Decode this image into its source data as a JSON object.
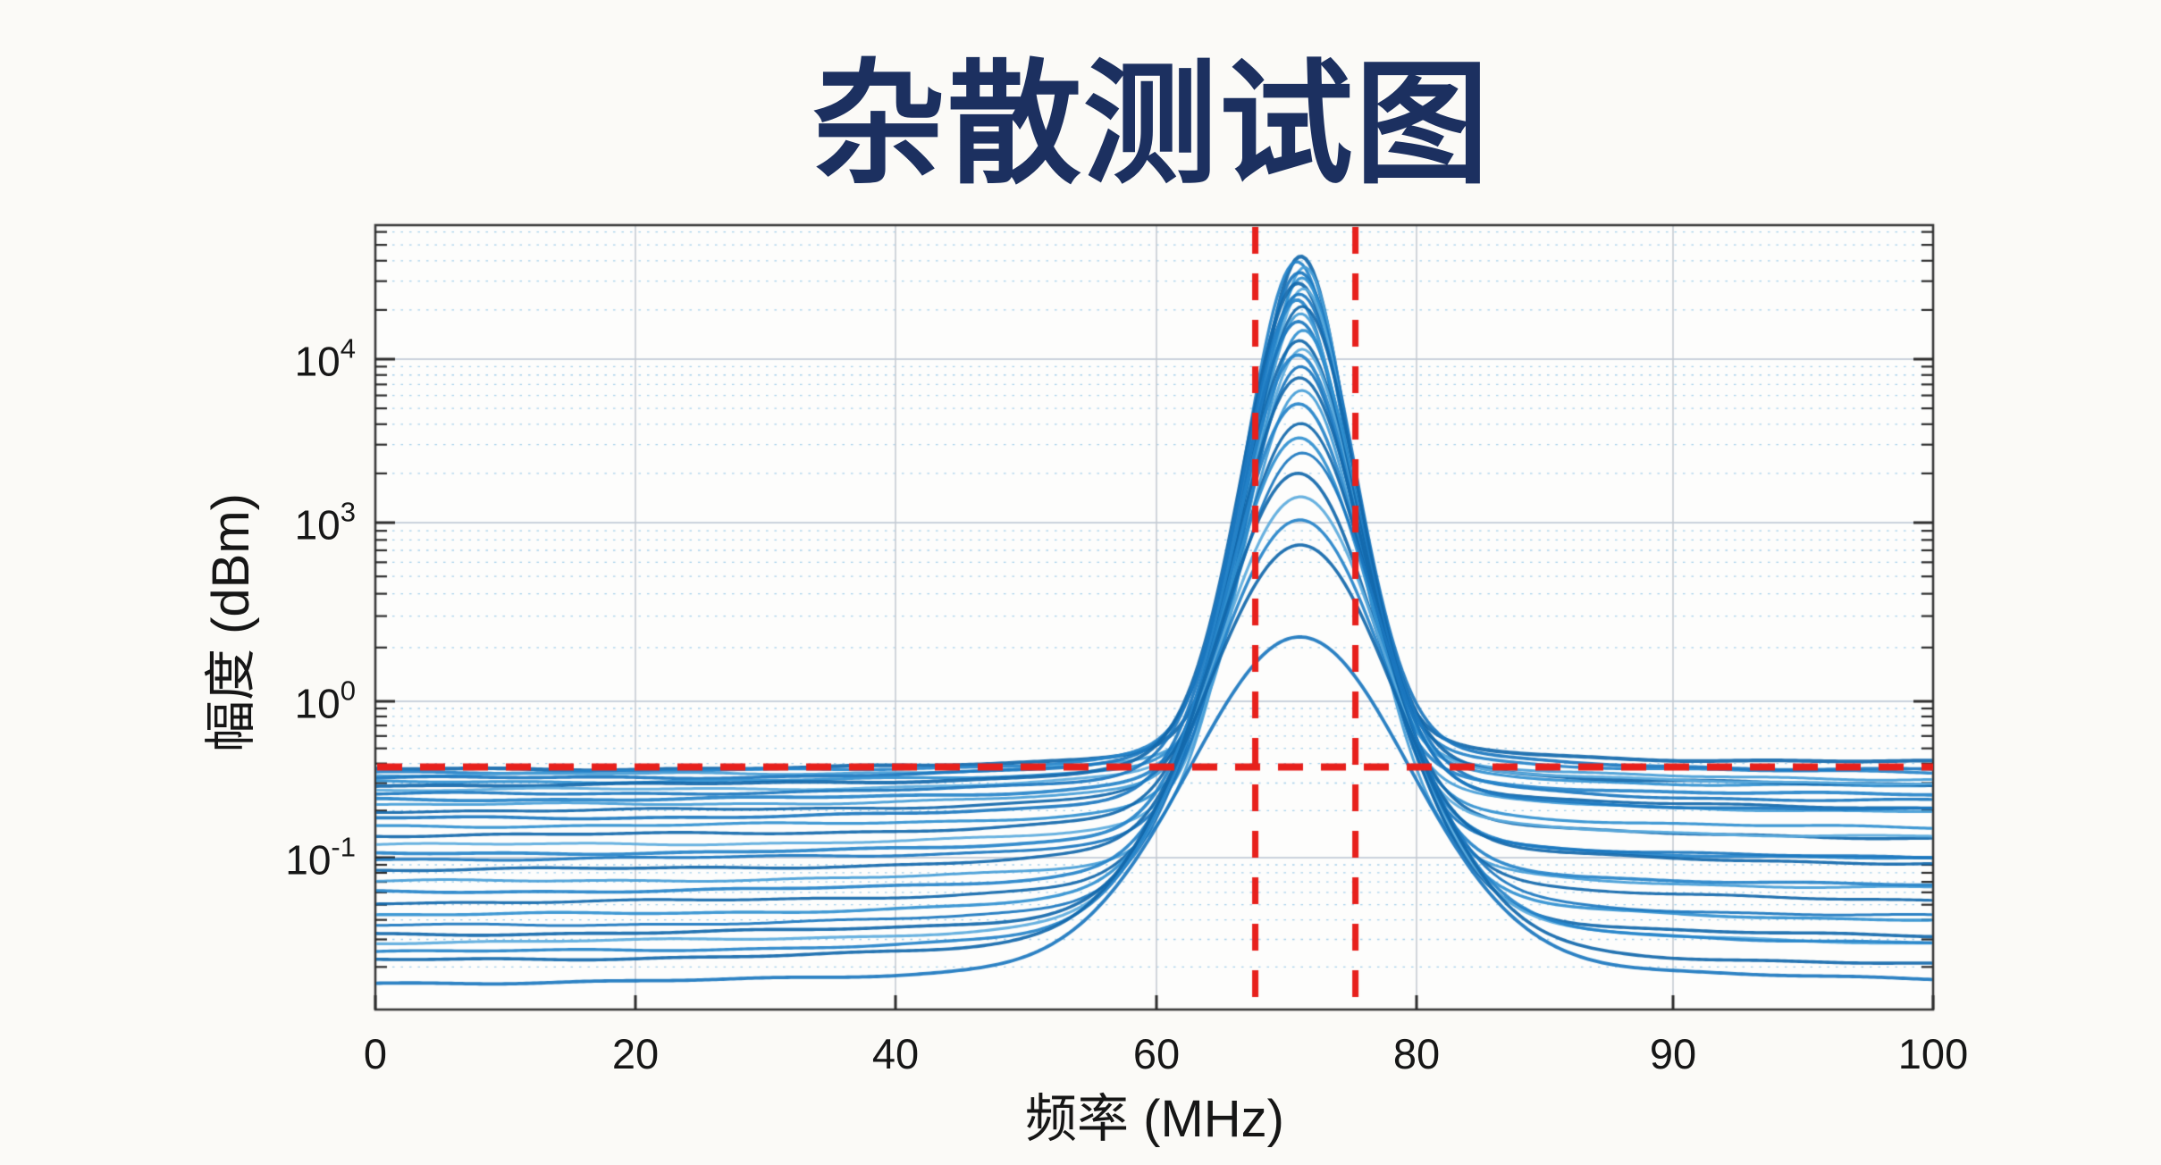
{
  "page": {
    "background": "#fbfaf7",
    "plot_background": "#fdfdfc",
    "box_color": "#3a3a3a",
    "tick_color": "#2c2c2c",
    "major_grid_color": "#b9c3d2",
    "minor_grid_color": "#a9c4e2",
    "vgrid_color": "#c6cbd2",
    "text_color": "#161616"
  },
  "chart_data": {
    "type": "line",
    "title": "杂散测试图",
    "title_color": "#1c3060",
    "xlabel": "频率 (MHz)",
    "ylabel": "幅度 (dBm)",
    "x_range": [
      0,
      100
    ],
    "grid": true,
    "legend": null,
    "x_ticks": [
      "0",
      "20",
      "40",
      "60",
      "80",
      "90",
      "100"
    ],
    "x_tick_values": [
      0,
      20,
      40,
      60,
      80,
      90,
      100
    ],
    "y_ticks": [
      {
        "base": "10",
        "exp": "4",
        "value": 10000
      },
      {
        "base": "10",
        "exp": "3",
        "value": 1000
      },
      {
        "base": "10",
        "exp": "0",
        "value": 1
      },
      {
        "base": "10",
        "exp": "-1",
        "value": 0.1
      }
    ],
    "peak_center_mhz": 71.1,
    "annotations": {
      "threshold": {
        "orientation": "horizontal",
        "value": 0.38,
        "style": "dashed",
        "color": "#e7201c"
      },
      "band": {
        "orientation": "vertical",
        "x1": 67.6,
        "x2": 75.3,
        "style": "dashed",
        "color": "#e7201c"
      }
    },
    "trace_color_palette": [
      "#1268ab",
      "#1b77bf",
      "#2583c9",
      "#3190d0",
      "#459dd7",
      "#5cabdd",
      "#77b9e4",
      "#0e5c9c"
    ],
    "traces": [
      {
        "peak": 42500,
        "base": 0.363,
        "w": 5.2,
        "f0": 71.1,
        "lw": 4.2,
        "c": 0
      },
      {
        "peak": 39400,
        "base": 0.349,
        "w": 5.5,
        "f0": 70.8,
        "lw": 3.4,
        "c": 2
      },
      {
        "peak": 36500,
        "base": 0.336,
        "w": 5.0,
        "f0": 71.4,
        "lw": 3.0,
        "c": 4
      },
      {
        "peak": 33900,
        "base": 0.318,
        "w": 5.8,
        "f0": 71.0,
        "lw": 3.6,
        "c": 1
      },
      {
        "peak": 31400,
        "base": 0.302,
        "w": 5.3,
        "f0": 71.2,
        "lw": 3.2,
        "c": 3
      },
      {
        "peak": 29100,
        "base": 0.287,
        "w": 6.0,
        "f0": 70.9,
        "lw": 4.0,
        "c": 0
      },
      {
        "peak": 27000,
        "base": 0.268,
        "w": 5.4,
        "f0": 71.3,
        "lw": 3.0,
        "c": 5
      },
      {
        "peak": 25000,
        "base": 0.251,
        "w": 6.2,
        "f0": 71.0,
        "lw": 3.4,
        "c": 1
      },
      {
        "peak": 23000,
        "base": 0.232,
        "w": 5.6,
        "f0": 70.8,
        "lw": 3.8,
        "c": 2
      },
      {
        "peak": 21000,
        "base": 0.196,
        "w": 6.1,
        "f0": 71.2,
        "lw": 3.2,
        "c": 0
      },
      {
        "peak": 19000,
        "base": 0.215,
        "w": 5.7,
        "f0": 71.1,
        "lw": 3.0,
        "c": 4
      },
      {
        "peak": 17000,
        "base": 0.176,
        "w": 6.4,
        "f0": 70.9,
        "lw": 3.6,
        "c": 1
      },
      {
        "peak": 15000,
        "base": 0.157,
        "w": 6.0,
        "f0": 71.3,
        "lw": 3.2,
        "c": 3
      },
      {
        "peak": 13000,
        "base": 0.137,
        "w": 6.6,
        "f0": 71.0,
        "lw": 3.4,
        "c": 0
      },
      {
        "peak": 11500,
        "base": 0.119,
        "w": 6.2,
        "f0": 71.2,
        "lw": 3.0,
        "c": 5
      },
      {
        "peak": 10600,
        "base": 0.104,
        "w": 6.9,
        "f0": 70.9,
        "lw": 3.8,
        "c": 2
      },
      {
        "peak": 9000,
        "base": 0.0962,
        "w": 6.6,
        "f0": 71.1,
        "lw": 3.2,
        "c": 1
      },
      {
        "peak": 7700,
        "base": 0.0821,
        "w": 7.2,
        "f0": 71.0,
        "lw": 3.4,
        "c": 0
      },
      {
        "peak": 6440,
        "base": 0.0692,
        "w": 6.9,
        "f0": 71.2,
        "lw": 3.0,
        "c": 4
      },
      {
        "peak": 5330,
        "base": 0.0591,
        "w": 7.6,
        "f0": 70.9,
        "lw": 3.6,
        "c": 2
      },
      {
        "peak": 4040,
        "base": 0.0505,
        "w": 7.9,
        "f0": 71.1,
        "lw": 3.2,
        "c": 0
      },
      {
        "peak": 3300,
        "base": 0.042,
        "w": 8.3,
        "f0": 71.0,
        "lw": 3.4,
        "c": 3
      },
      {
        "peak": 2670,
        "base": 0.0358,
        "w": 8.6,
        "f0": 71.2,
        "lw": 3.0,
        "c": 1
      },
      {
        "peak": 2000,
        "base": 0.0314,
        "w": 9.0,
        "f0": 70.9,
        "lw": 3.6,
        "c": 0
      },
      {
        "peak": 1440,
        "base": 0.0279,
        "w": 9.4,
        "f0": 71.1,
        "lw": 3.2,
        "c": 5
      },
      {
        "peak": 1040,
        "base": 0.0242,
        "w": 9.8,
        "f0": 71.0,
        "lw": 3.4,
        "c": 2
      },
      {
        "peak": 422,
        "base": 0.0214,
        "w": 10.6,
        "f0": 71.1,
        "lw": 3.6,
        "c": 0
      },
      {
        "peak": 12,
        "base": 0.0152,
        "w": 11.8,
        "f0": 71.0,
        "lw": 3.8,
        "c": 1
      }
    ]
  }
}
